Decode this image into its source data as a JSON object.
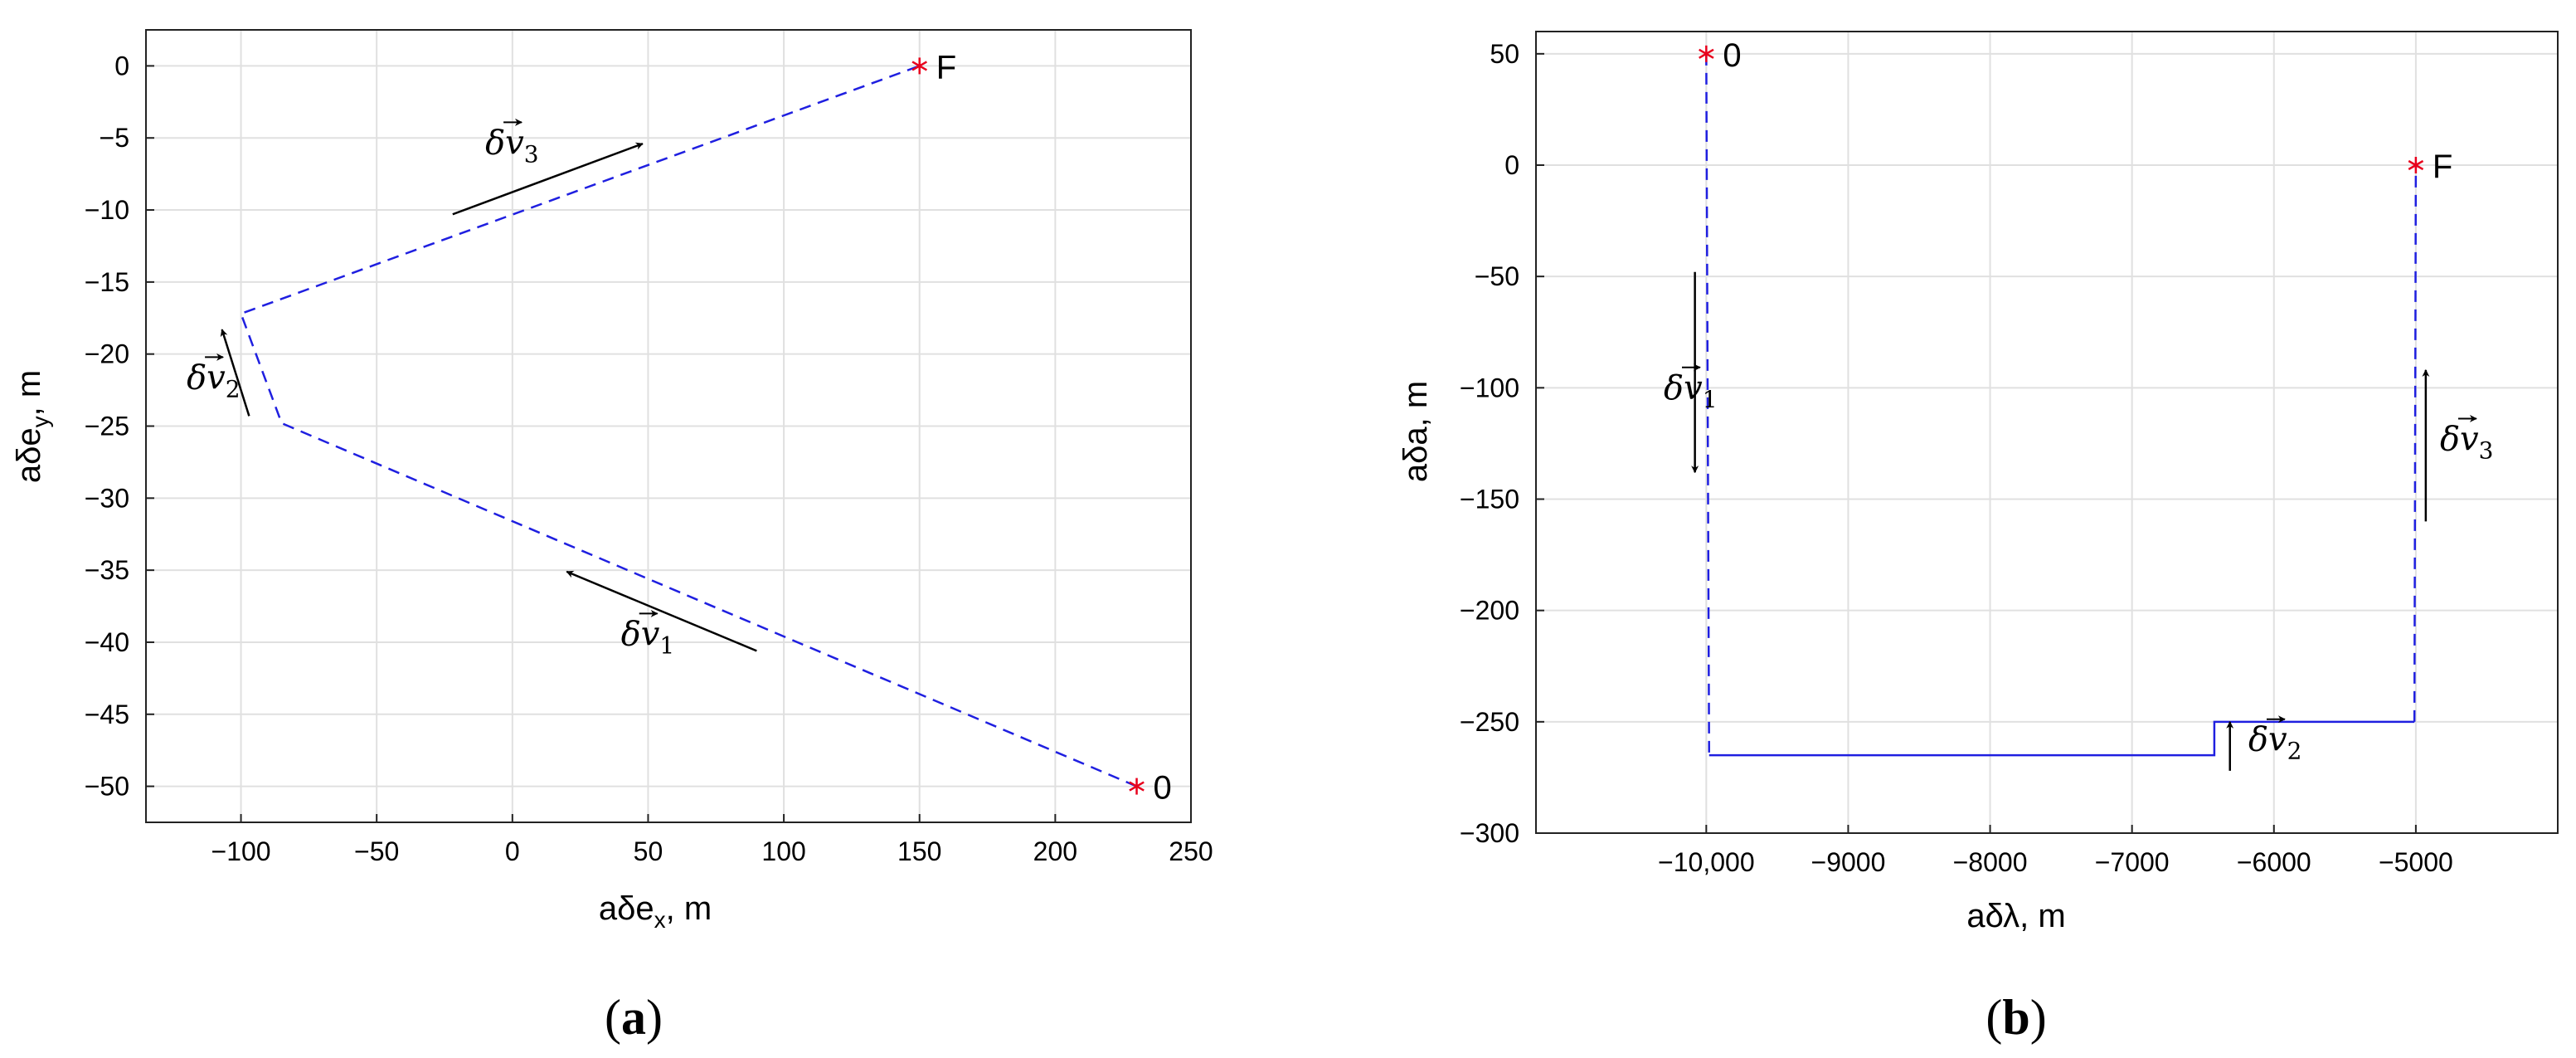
{
  "chart_data": [
    {
      "type": "line",
      "panel_label": "a",
      "xlabel": "aδe",
      "xlabel_sub": "x",
      "xlabel_unit": ", m",
      "ylabel": "aδe",
      "ylabel_sub": "y",
      "ylabel_unit": ", m",
      "xlim": [
        -135,
        250
      ],
      "ylim": [
        -52.5,
        2.5
      ],
      "xticks": [
        -100,
        -50,
        0,
        50,
        100,
        150,
        200,
        250
      ],
      "xtick_labels": [
        "−100",
        "−50",
        "0",
        "50",
        "100",
        "150",
        "200",
        "250"
      ],
      "yticks": [
        0,
        -5,
        -10,
        -15,
        -20,
        -25,
        -30,
        -35,
        -40,
        -45,
        -50
      ],
      "ytick_labels": [
        "0",
        "−5",
        "−10",
        "−15",
        "−20",
        "−25",
        "−30",
        "−35",
        "−40",
        "−45",
        "−50"
      ],
      "grid": true,
      "series": [
        {
          "color": "#1f1fe0",
          "style": "dashed",
          "x": [
            230,
            -85,
            -100,
            150
          ],
          "y": [
            -50,
            -24.8,
            -17.2,
            0
          ]
        }
      ],
      "markers": [
        {
          "x": 230,
          "y": -50,
          "label": "0"
        },
        {
          "x": 150,
          "y": 0,
          "label": "F"
        }
      ],
      "arrows": [
        {
          "from": [
            90,
            -40.6
          ],
          "to": [
            20,
            -35.1
          ],
          "label": "δv",
          "label_sub": "1",
          "label_pos": [
            40,
            -40.2
          ]
        },
        {
          "from": [
            -97,
            -24.3
          ],
          "to": [
            -107,
            -18.3
          ],
          "label": "δv",
          "label_sub": "2",
          "label_pos": [
            -120,
            -22.4
          ]
        },
        {
          "from": [
            -22,
            -10.3
          ],
          "to": [
            48,
            -5.4
          ],
          "label": "δv",
          "label_sub": "3",
          "label_pos": [
            -10,
            -6.1
          ]
        }
      ],
      "colors": {
        "path": "#1f1fe0",
        "marker": "#e8001c",
        "grid": "#e0e0e0",
        "arrow": "#000000"
      }
    },
    {
      "type": "line",
      "panel_label": "b",
      "xlabel": "aδλ",
      "xlabel_unit": ", m",
      "ylabel": "aδa",
      "ylabel_unit": ", m",
      "xlim": [
        -11200,
        -4000
      ],
      "ylim": [
        -300,
        60
      ],
      "xticks": [
        -10000,
        -9000,
        -8000,
        -7000,
        -6000,
        -5000
      ],
      "xtick_labels": [
        "−10,000",
        "−9000",
        "−8000",
        "−7000",
        "−6000",
        "−5000"
      ],
      "yticks": [
        50,
        0,
        -50,
        -100,
        -150,
        -200,
        -250,
        -300
      ],
      "ytick_labels": [
        "50",
        "0",
        "−50",
        "−100",
        "−150",
        "−200",
        "−250",
        "−300"
      ],
      "grid": true,
      "series": [
        {
          "color": "#1f1fe0",
          "style": "dashed",
          "x": [
            -10000,
            -9980
          ],
          "y": [
            50,
            -265
          ]
        },
        {
          "color": "#1f1fe0",
          "style": "solid",
          "x": [
            -9980,
            -6420,
            -6420,
            -5010
          ],
          "y": [
            -265,
            -265,
            -250,
            -250
          ]
        },
        {
          "color": "#1f1fe0",
          "style": "dashed",
          "x": [
            -5010,
            -5000
          ],
          "y": [
            -250,
            0
          ]
        }
      ],
      "markers": [
        {
          "x": -10000,
          "y": 50,
          "label": "0"
        },
        {
          "x": -5000,
          "y": 0,
          "label": "F"
        }
      ],
      "arrows": [
        {
          "from": [
            -10080,
            -48
          ],
          "to": [
            -10080,
            -138
          ],
          "label": "δv",
          "label_sub": "1",
          "label_pos": [
            -10300,
            -105
          ]
        },
        {
          "from": [
            -6310,
            -272
          ],
          "to": [
            -6310,
            -250
          ],
          "label": "δv",
          "label_sub": "2",
          "label_pos": [
            -6180,
            -263
          ]
        },
        {
          "from": [
            -4930,
            -160
          ],
          "to": [
            -4930,
            -92
          ],
          "label": "δv",
          "label_sub": "3",
          "label_pos": [
            -4830,
            -128
          ]
        }
      ],
      "colors": {
        "path": "#1f1fe0",
        "marker": "#e8001c",
        "grid": "#e0e0e0",
        "arrow": "#000000"
      }
    }
  ]
}
